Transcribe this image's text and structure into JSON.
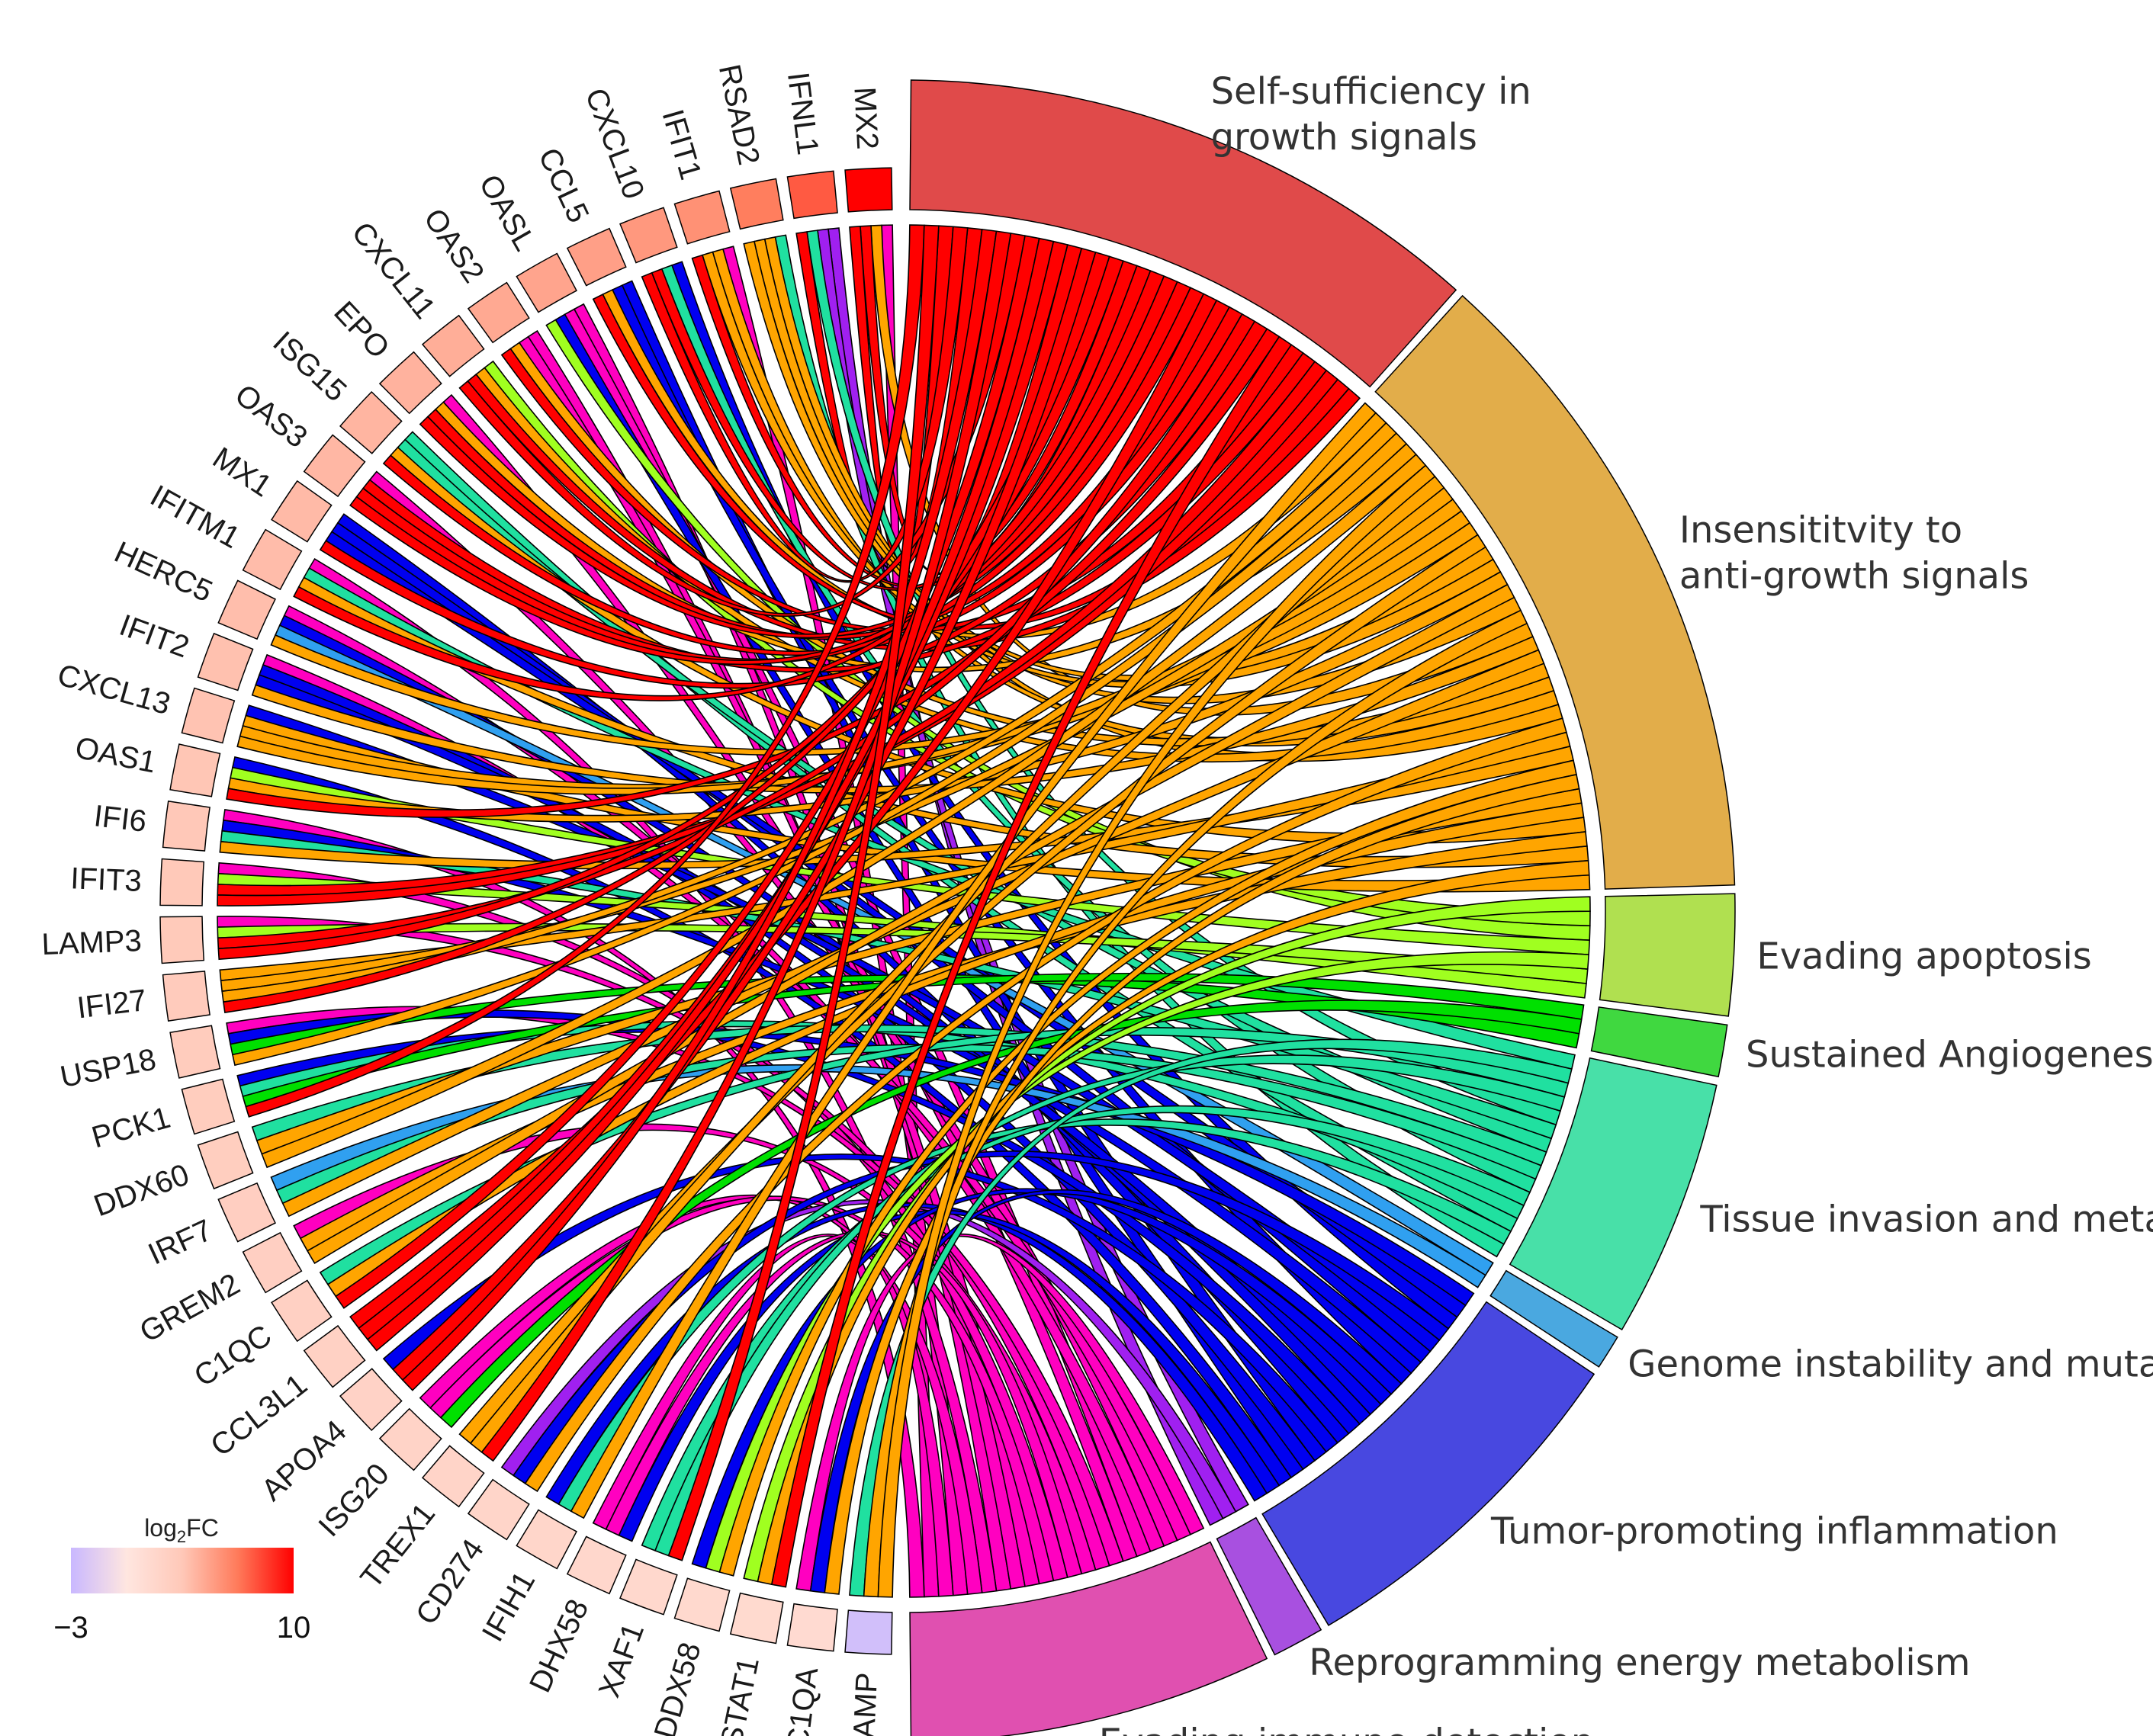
{
  "chart_data": {
    "type": "chord",
    "genes": [
      {
        "name": "MX2",
        "log2fc": 10.0
      },
      {
        "name": "IFNL1",
        "log2fc": 7.6
      },
      {
        "name": "RSAD2",
        "log2fc": 6.6
      },
      {
        "name": "IFIT1",
        "log2fc": 5.8
      },
      {
        "name": "CXCL10",
        "log2fc": 5.5
      },
      {
        "name": "CCL5",
        "log2fc": 5.2
      },
      {
        "name": "OASL",
        "log2fc": 5.0
      },
      {
        "name": "OAS2",
        "log2fc": 4.8
      },
      {
        "name": "CXCL11",
        "log2fc": 4.6
      },
      {
        "name": "EPO",
        "log2fc": 4.4
      },
      {
        "name": "ISG15",
        "log2fc": 4.3
      },
      {
        "name": "OAS3",
        "log2fc": 4.2
      },
      {
        "name": "MX1",
        "log2fc": 4.1
      },
      {
        "name": "IFITM1",
        "log2fc": 4.0
      },
      {
        "name": "HERC5",
        "log2fc": 3.9
      },
      {
        "name": "IFIT2",
        "log2fc": 3.8
      },
      {
        "name": "CXCL13",
        "log2fc": 3.7
      },
      {
        "name": "OAS1",
        "log2fc": 3.6
      },
      {
        "name": "IFI6",
        "log2fc": 3.5
      },
      {
        "name": "IFIT3",
        "log2fc": 3.4
      },
      {
        "name": "LAMP3",
        "log2fc": 3.3
      },
      {
        "name": "IFI27",
        "log2fc": 3.2
      },
      {
        "name": "USP18",
        "log2fc": 3.1
      },
      {
        "name": "PCK1",
        "log2fc": 3.0
      },
      {
        "name": "DDX60",
        "log2fc": 2.9
      },
      {
        "name": "IRF7",
        "log2fc": 2.8
      },
      {
        "name": "GREM2",
        "log2fc": 2.7
      },
      {
        "name": "C1QC",
        "log2fc": 2.6
      },
      {
        "name": "CCL3L1",
        "log2fc": 2.5
      },
      {
        "name": "APOA4",
        "log2fc": 2.4
      },
      {
        "name": "ISG20",
        "log2fc": 2.3
      },
      {
        "name": "TREX1",
        "log2fc": 2.2
      },
      {
        "name": "CD274",
        "log2fc": 2.1
      },
      {
        "name": "IFIH1",
        "log2fc": 2.0
      },
      {
        "name": "DHX58",
        "log2fc": 1.9
      },
      {
        "name": "XAF1",
        "log2fc": 1.8
      },
      {
        "name": "DDX58",
        "log2fc": 1.7
      },
      {
        "name": "STAT1",
        "log2fc": 1.6
      },
      {
        "name": "C1QA",
        "log2fc": 1.5
      },
      {
        "name": "HAMP",
        "log2fc": -2.5
      }
    ],
    "categories": [
      {
        "name": "Self-sufficiency in growth signals",
        "label_lines": [
          "Self-sufficiency in",
          "growth signals"
        ],
        "color": "#e04a4a",
        "link_color": "#ff0000",
        "links": 34
      },
      {
        "name": "Insensititvity to anti-growth signals",
        "label_lines": [
          "Insensititvity to",
          "anti-growth signals"
        ],
        "color": "#e2ad4a",
        "link_color": "#ffa500",
        "links": 38
      },
      {
        "name": "Evading apoptosis",
        "label_lines": [
          "Evading apoptosis"
        ],
        "color": "#b0e050",
        "link_color": "#a0ff20",
        "links": 7
      },
      {
        "name": "Sustained Angiogenesis",
        "label_lines": [
          "Sustained Angiogenesis"
        ],
        "color": "#40d840",
        "link_color": "#00e000",
        "links": 3
      },
      {
        "name": "Tissue invasion and metastasis",
        "label_lines": [
          "Tissue invasion and metastasis"
        ],
        "color": "#48e0a8",
        "link_color": "#20e0a0",
        "links": 15
      },
      {
        "name": "Genome instability and mutation",
        "label_lines": [
          "Genome instability and mutation"
        ],
        "color": "#4aa8e0",
        "link_color": "#30a0f0",
        "links": 2
      },
      {
        "name": "Tumor-promoting inflammation",
        "label_lines": [
          "Tumor-promoting inflammation"
        ],
        "color": "#4848e0",
        "link_color": "#0000f0",
        "links": 21
      },
      {
        "name": "Reprogramming energy metabolism",
        "label_lines": [
          "Reprogramming energy metabolism"
        ],
        "color": "#a850e0",
        "link_color": "#a020f0",
        "links": 3
      },
      {
        "name": "Evading immune-detection",
        "label_lines": [
          "Evading immune-detection"
        ],
        "color": "#e050b0",
        "link_color": "#ff00c0",
        "links": 21
      }
    ],
    "legend": {
      "title": "log",
      "title_sub": "2",
      "title_suffix": "FC",
      "min_label": "−3",
      "max_label": "10",
      "min": -3,
      "max": 10,
      "colors": [
        "#c9b8ff",
        "#ffe6e0",
        "#ffc8b8",
        "#ff7a5a",
        "#ff0000"
      ]
    }
  }
}
